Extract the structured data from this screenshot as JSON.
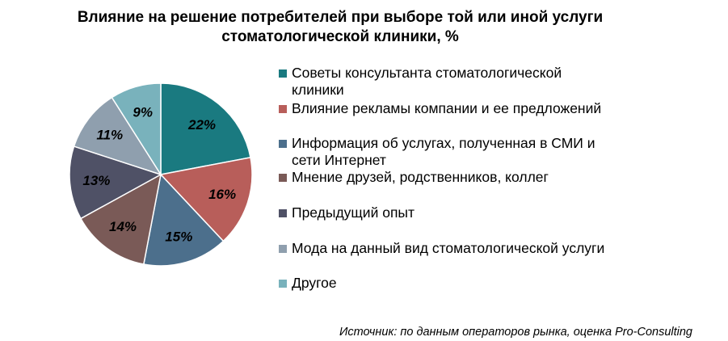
{
  "title_line1": "Влияние на решение потребителей при выборе той или иной услуги",
  "title_line2": "стоматологической клиники, %",
  "source": "Источник: по данным операторов рынка, оценка Pro-Consulting",
  "chart_data": {
    "type": "pie",
    "title": "Влияние на решение потребителей при выборе той или иной услуги стоматологической клиники, %",
    "categories": [
      "Советы консультанта стоматологической клиники",
      "Влияние рекламы компании и ее предложений",
      "Информация об услугах, полученная в СМИ и сети Интернет",
      "Мнение друзей, родственников, коллег",
      "Предыдущий опыт",
      "Мода на данный вид стоматологической услуги",
      "Другое"
    ],
    "values": [
      22,
      16,
      15,
      14,
      13,
      11,
      9
    ],
    "labels": [
      "22%",
      "16%",
      "15%",
      "14%",
      "13%",
      "11%",
      "9%"
    ],
    "colors": [
      "#1A7A80",
      "#B85E5A",
      "#4C6F8C",
      "#7A5A57",
      "#4F5166",
      "#8F9FAE",
      "#79B2BC"
    ],
    "legend_position": "right"
  },
  "legend": [
    {
      "label_line1": "Советы консультанта стоматологической",
      "label_line2": "клиники"
    },
    {
      "label_line1": "Влияние рекламы компании и ее предложений",
      "label_line2": ""
    },
    {
      "label_line1": "Информация об услугах, полученная в СМИ и",
      "label_line2": "сети Интернет"
    },
    {
      "label_line1": "Мнение друзей, родственников, коллег",
      "label_line2": ""
    },
    {
      "label_line1": "Предыдущий опыт",
      "label_line2": ""
    },
    {
      "label_line1": "Мода на данный вид стоматологической услуги",
      "label_line2": ""
    },
    {
      "label_line1": "Другое",
      "label_line2": ""
    }
  ]
}
